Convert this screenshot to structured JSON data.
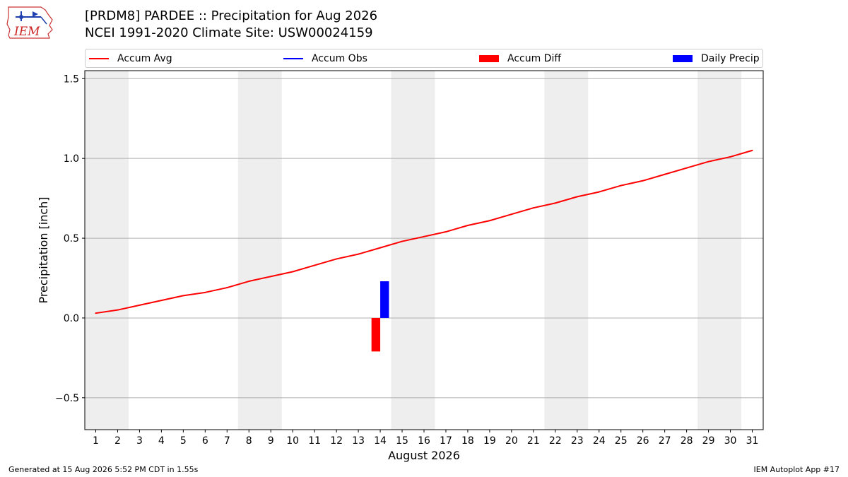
{
  "header": {
    "title_line1": "[PRDM8] PARDEE :: Precipitation for Aug 2026",
    "title_line2": "NCEI 1991-2020 Climate Site: USW00024159"
  },
  "logo": {
    "text": "IEM"
  },
  "footer": {
    "left": "Generated at 15 Aug 2026 5:52 PM CDT in 1.55s",
    "right": "IEM Autoplot App #17"
  },
  "colors": {
    "accum_avg": "#ff0000",
    "accum_obs": "#0000ff",
    "accum_diff": "#ff0000",
    "daily_precip": "#0000ff",
    "weekend_shade": "#eeeeee",
    "grid": "#b0b0b0"
  },
  "chart_data": {
    "type": "line",
    "xlabel": "August 2026",
    "ylabel": "Precipitation [inch]",
    "ylim": [
      -0.7,
      1.55
    ],
    "xlim": [
      0.5,
      31.5
    ],
    "y_ticks": [
      -0.5,
      0.0,
      0.5,
      1.0,
      1.5
    ],
    "y_tick_labels": [
      "−0.5",
      "0.0",
      "0.5",
      "1.0",
      "1.5"
    ],
    "x_ticks": [
      1,
      2,
      3,
      4,
      5,
      6,
      7,
      8,
      9,
      10,
      11,
      12,
      13,
      14,
      15,
      16,
      17,
      18,
      19,
      20,
      21,
      22,
      23,
      24,
      25,
      26,
      27,
      28,
      29,
      30,
      31
    ],
    "grid": "horizontal",
    "legend_position": "top",
    "legend": [
      "Accum Avg",
      "Accum Obs",
      "Accum Diff",
      "Daily Precip"
    ],
    "weekend_spans": [
      [
        0.5,
        2.5
      ],
      [
        7.5,
        9.5
      ],
      [
        14.5,
        16.5
      ],
      [
        21.5,
        23.5
      ],
      [
        28.5,
        30.5
      ]
    ],
    "series": [
      {
        "name": "Accum Avg",
        "kind": "line",
        "x": [
          1,
          2,
          3,
          4,
          5,
          6,
          7,
          8,
          9,
          10,
          11,
          12,
          13,
          14,
          15,
          16,
          17,
          18,
          19,
          20,
          21,
          22,
          23,
          24,
          25,
          26,
          27,
          28,
          29,
          30,
          31
        ],
        "values": [
          0.03,
          0.05,
          0.08,
          0.11,
          0.14,
          0.16,
          0.19,
          0.23,
          0.26,
          0.29,
          0.33,
          0.37,
          0.4,
          0.44,
          0.48,
          0.51,
          0.54,
          0.58,
          0.61,
          0.65,
          0.69,
          0.72,
          0.76,
          0.79,
          0.83,
          0.86,
          0.9,
          0.94,
          0.98,
          1.01,
          1.05
        ]
      },
      {
        "name": "Accum Diff",
        "kind": "bar",
        "x": [
          14
        ],
        "values": [
          -0.21
        ]
      },
      {
        "name": "Daily Precip",
        "kind": "bar",
        "x": [
          14
        ],
        "values": [
          0.23
        ]
      }
    ]
  }
}
